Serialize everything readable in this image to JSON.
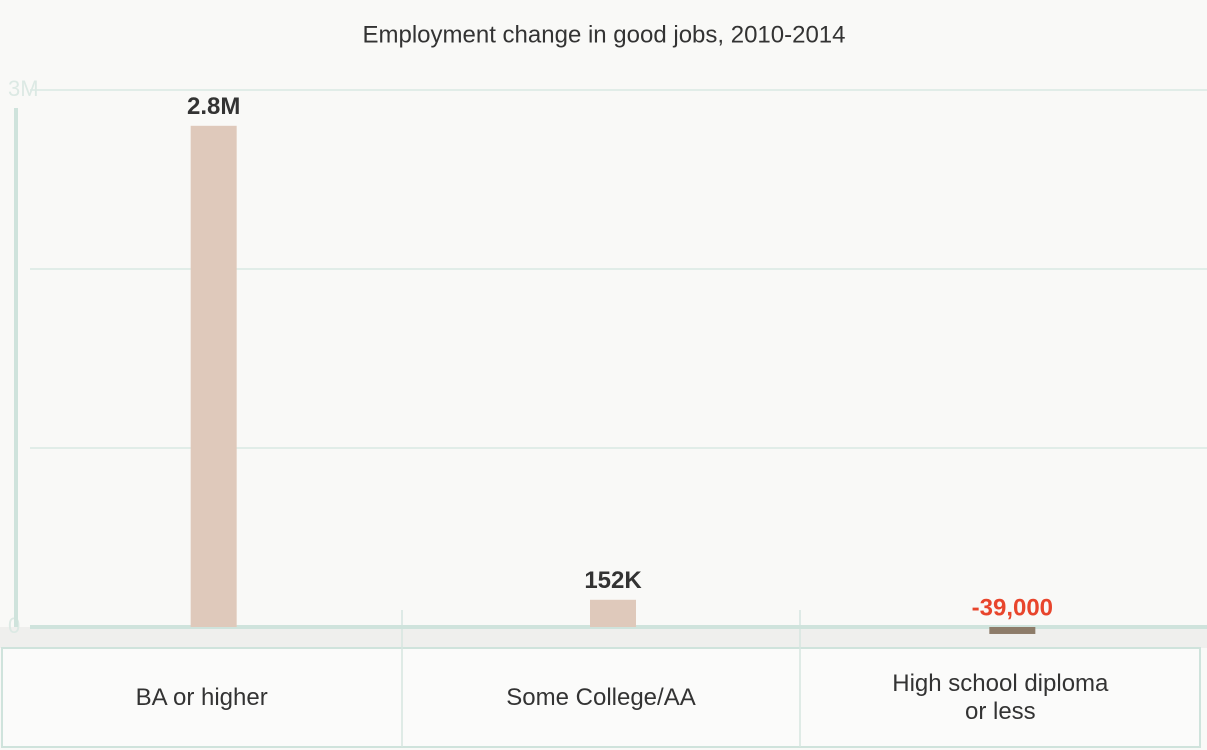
{
  "chart_data": {
    "type": "bar",
    "title": "Employment change in good jobs, 2010-2014",
    "categories": [
      "BA or higher",
      "Some College/AA",
      "High school diploma or less"
    ],
    "values": [
      2800000,
      152000,
      -39000
    ],
    "value_labels": [
      "2.8M",
      "152K",
      "-39,000"
    ],
    "color": "#dfc9bb",
    "negative_color": "#8d7c69",
    "label_color": "#333333",
    "negative_label_color": "#e8452c",
    "ylim": [
      -30000,
      3000000
    ],
    "yticks": [
      0,
      {
        "value": 1000000,
        "label": null
      },
      {
        "value": 2000000,
        "label": null
      },
      {
        "value": 3000000,
        "label": "3M"
      }
    ],
    "grid": true
  }
}
